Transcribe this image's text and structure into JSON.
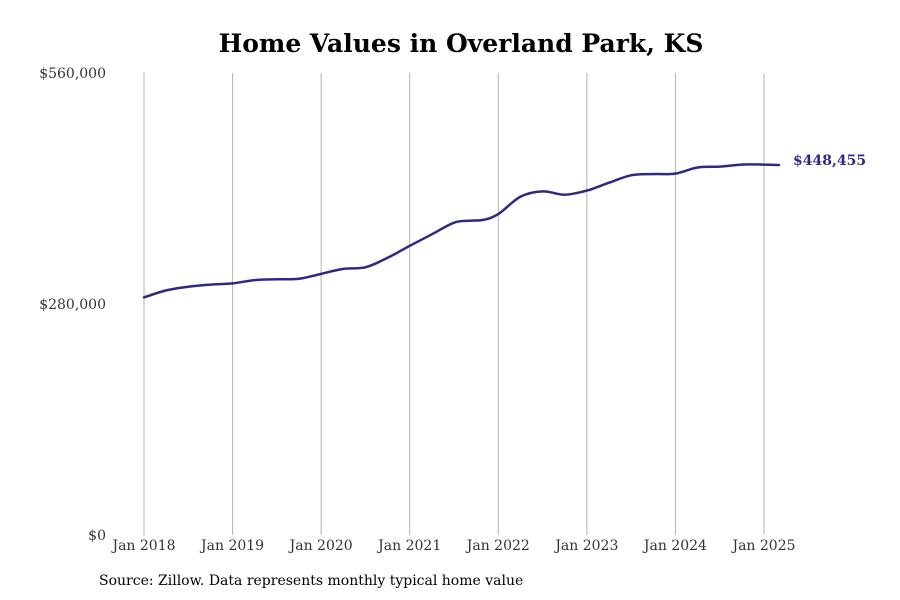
{
  "chart_data": {
    "type": "line",
    "title": "Home Values in Overland Park, KS",
    "xlabel": "",
    "ylabel": "",
    "ylim": [
      0,
      560000
    ],
    "y_ticks": [
      0,
      280000,
      560000
    ],
    "y_tick_labels": [
      "$0",
      "$280,000",
      "$560,000"
    ],
    "x_ticks": [
      2018,
      2019,
      2020,
      2021,
      2022,
      2023,
      2024,
      2025
    ],
    "x_tick_labels": [
      "Jan 2018",
      "Jan 2019",
      "Jan 2020",
      "Jan 2021",
      "Jan 2022",
      "Jan 2023",
      "Jan 2024",
      "Jan 2025"
    ],
    "grid": "vertical",
    "line_color": "#2e2a84",
    "series": [
      {
        "x": [
          2018.0,
          2018.25,
          2018.5,
          2018.75,
          2019.0,
          2019.25,
          2019.5,
          2019.75,
          2020.0,
          2020.25,
          2020.5,
          2020.75,
          2021.0,
          2021.25,
          2021.5,
          2021.67,
          2021.83,
          2022.0,
          2022.25,
          2022.5,
          2022.75,
          2023.0,
          2023.25,
          2023.5,
          2023.75,
          2024.0,
          2024.25,
          2024.5,
          2024.75,
          2025.0,
          2025.17
        ],
        "values": [
          288000,
          296500,
          301000,
          303500,
          305000,
          309000,
          310000,
          310500,
          316500,
          322500,
          324500,
          336000,
          350500,
          364500,
          378500,
          381000,
          382000,
          389000,
          410000,
          416500,
          412500,
          417500,
          427000,
          436000,
          437500,
          438000,
          445500,
          446500,
          449000,
          449000,
          448455
        ]
      }
    ],
    "end_label": "$448,455",
    "source": "Source: Zillow. Data represents monthly typical home value"
  }
}
